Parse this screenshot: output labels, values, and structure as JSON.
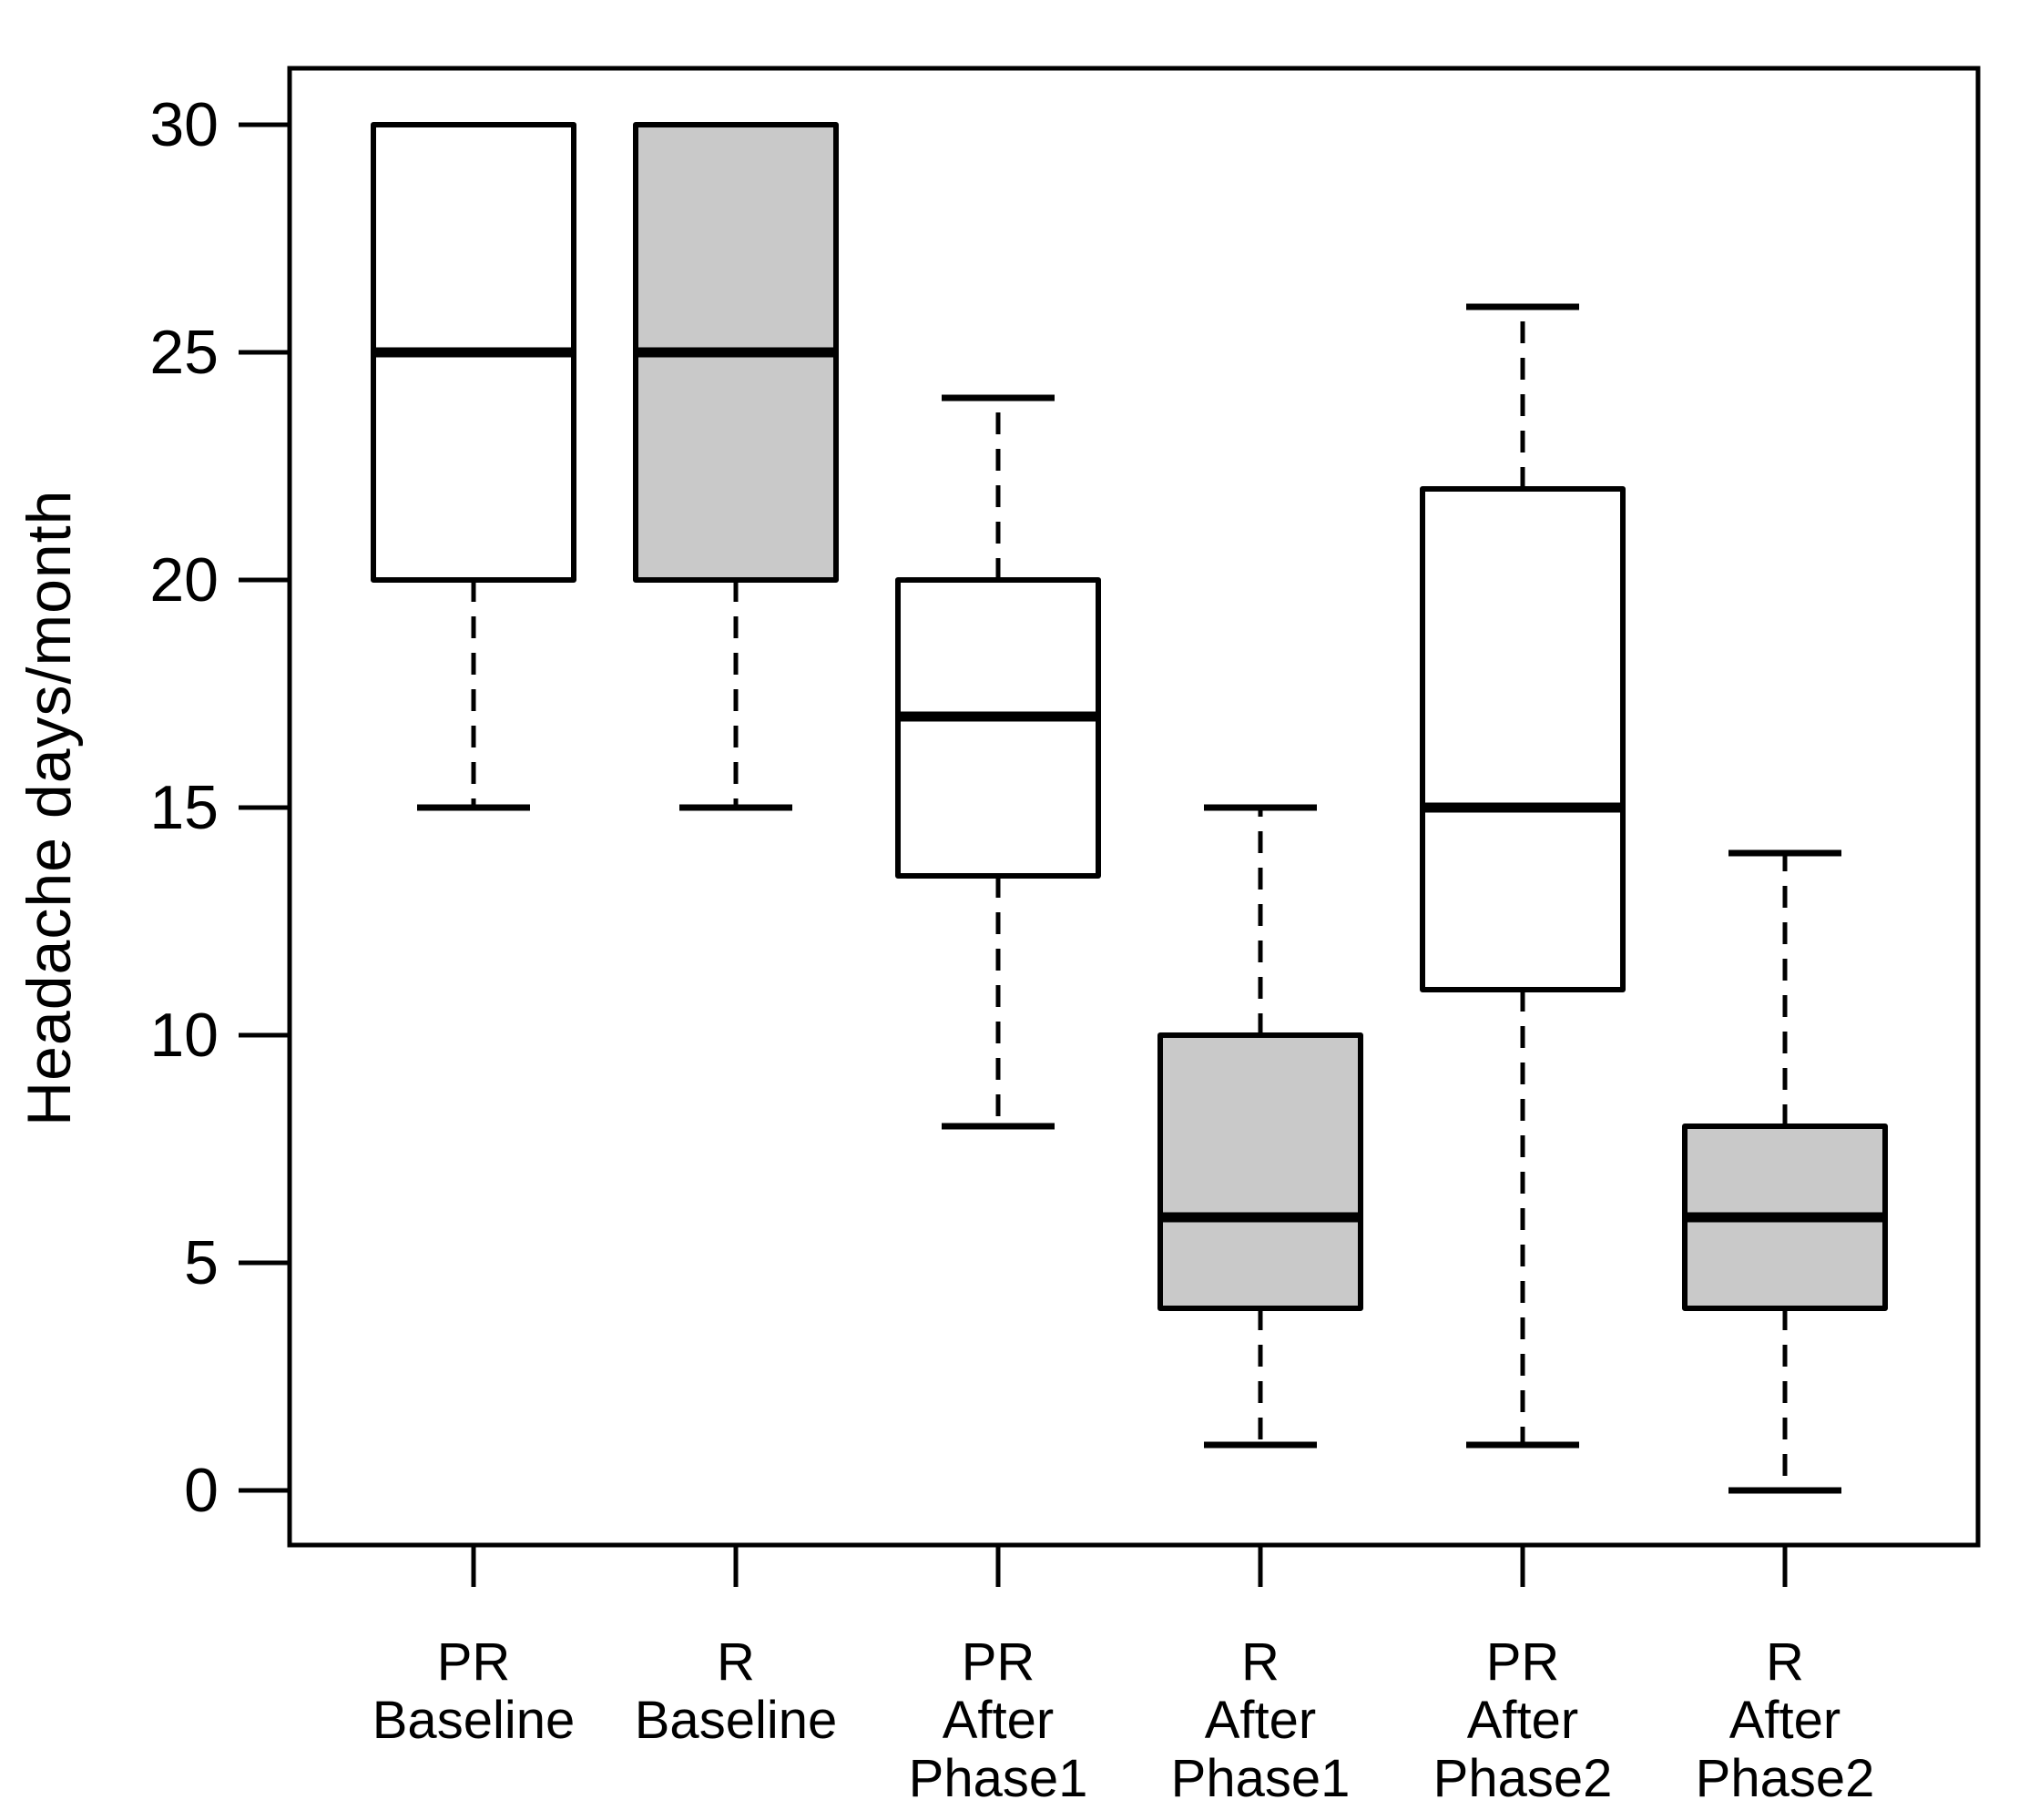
{
  "figure": {
    "background_color": "#ffffff",
    "axis_color": "#000000",
    "text_color": "#000000"
  },
  "chart_data": {
    "type": "boxplot",
    "title": "",
    "xlabel": "",
    "ylabel": "Headache days/month",
    "ylim": [
      0,
      30
    ],
    "y_ticks": [
      0,
      5,
      10,
      15,
      20,
      25,
      30
    ],
    "grid": false,
    "legend": "none",
    "colors": {
      "white_box_fill": "#ffffff",
      "gray_box_fill": "#c9c9c9",
      "stroke": "#000000"
    },
    "categories": [
      "PR Baseline",
      "R Baseline",
      "PR After Phase1",
      "R After Phase1",
      "PR After Phase2",
      "R After Phase2"
    ],
    "boxes": [
      {
        "label_lines": [
          "PR",
          "Baseline"
        ],
        "fill": "white",
        "whisker_low": 15,
        "q1": 20,
        "median": 25,
        "q3": 30,
        "whisker_high": 30,
        "has_upper_whisker": false
      },
      {
        "label_lines": [
          "R",
          "Baseline"
        ],
        "fill": "gray",
        "whisker_low": 15,
        "q1": 20,
        "median": 25,
        "q3": 30,
        "whisker_high": 30,
        "has_upper_whisker": false
      },
      {
        "label_lines": [
          "PR",
          "After",
          "Phase1"
        ],
        "fill": "white",
        "whisker_low": 8,
        "q1": 13.5,
        "median": 17,
        "q3": 20,
        "whisker_high": 24,
        "has_upper_whisker": true
      },
      {
        "label_lines": [
          "R",
          "After",
          "Phase1"
        ],
        "fill": "gray",
        "whisker_low": 1,
        "q1": 4,
        "median": 6,
        "q3": 10,
        "whisker_high": 15,
        "has_upper_whisker": true
      },
      {
        "label_lines": [
          "PR",
          "After",
          "Phase2"
        ],
        "fill": "white",
        "whisker_low": 1,
        "q1": 11,
        "median": 15,
        "q3": 22,
        "whisker_high": 26,
        "has_upper_whisker": true
      },
      {
        "label_lines": [
          "R",
          "After",
          "Phase2"
        ],
        "fill": "gray",
        "whisker_low": 0,
        "q1": 4,
        "median": 6,
        "q3": 8,
        "whisker_high": 14,
        "has_upper_whisker": true
      }
    ]
  }
}
